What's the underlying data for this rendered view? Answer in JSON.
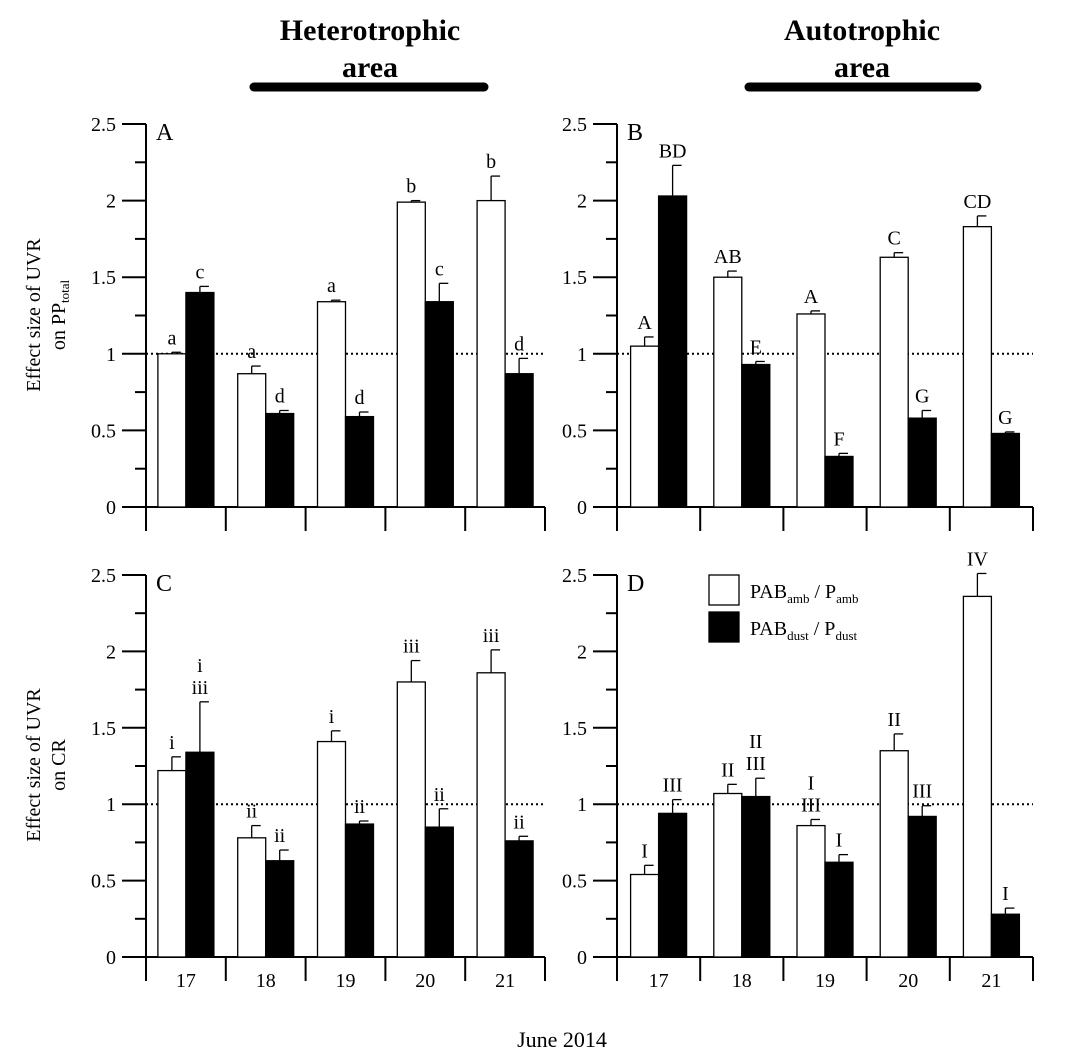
{
  "headers": {
    "left": [
      "Heterotrophic",
      "area"
    ],
    "right": [
      "Autotrophic",
      "area"
    ]
  },
  "y_axis_labels": {
    "top": {
      "line1": "Effect size of UVR",
      "line2_main": "on PP",
      "line2_sub": "total"
    },
    "bottom": {
      "line1": "Effect size of UVR",
      "line2_main": "on CR",
      "line2_sub": ""
    }
  },
  "x_axis_title": "June 2014",
  "legend": [
    {
      "main": "PAB",
      "sub1": "amb",
      "mid": " / P",
      "sub2": "amb",
      "fill": "#ffffff"
    },
    {
      "main": "PAB",
      "sub1": "dust",
      "mid": " / P",
      "sub2": "dust",
      "fill": "#000000"
    }
  ],
  "colors": {
    "ambient_bar": "#ffffff",
    "dust_bar": "#000000",
    "axis": "#000000"
  },
  "chart_data": [
    {
      "type": "bar",
      "panel": "A",
      "categories": [
        "17",
        "18",
        "19",
        "20",
        "21"
      ],
      "ylim": [
        0,
        2.5
      ],
      "yticks": [
        "0",
        "0.5",
        "1",
        "1.5",
        "2",
        "2.5"
      ],
      "reference_line": 1,
      "series": [
        {
          "name": "PABamb / Pamb",
          "values": [
            1.0,
            0.87,
            1.34,
            1.99,
            2.0
          ],
          "errors": [
            0.01,
            0.05,
            0.01,
            0.01,
            0.16
          ],
          "labels": [
            [
              "a"
            ],
            [
              "a"
            ],
            [
              "a"
            ],
            [
              "b"
            ],
            [
              "b"
            ]
          ]
        },
        {
          "name": "PABdust / Pdust",
          "values": [
            1.4,
            0.61,
            0.59,
            1.34,
            0.87
          ],
          "errors": [
            0.04,
            0.02,
            0.03,
            0.12,
            0.1
          ],
          "labels": [
            [
              "c"
            ],
            [
              "d"
            ],
            [
              "d"
            ],
            [
              "c"
            ],
            [
              "d"
            ]
          ]
        }
      ]
    },
    {
      "type": "bar",
      "panel": "B",
      "categories": [
        "17",
        "18",
        "19",
        "20",
        "21"
      ],
      "ylim": [
        0,
        2.5
      ],
      "yticks": [
        "0",
        "0.5",
        "1",
        "1.5",
        "2",
        "2.5"
      ],
      "reference_line": 1,
      "series": [
        {
          "name": "PABamb / Pamb",
          "values": [
            1.05,
            1.5,
            1.26,
            1.63,
            1.83
          ],
          "errors": [
            0.06,
            0.04,
            0.02,
            0.03,
            0.07
          ],
          "labels": [
            [
              "A"
            ],
            [
              "AB"
            ],
            [
              "A"
            ],
            [
              "C"
            ],
            [
              "CD"
            ]
          ]
        },
        {
          "name": "PABdust / Pdust",
          "values": [
            2.03,
            0.93,
            0.33,
            0.58,
            0.48
          ],
          "errors": [
            0.2,
            0.02,
            0.02,
            0.05,
            0.01
          ],
          "labels": [
            [
              "BD"
            ],
            [
              "E"
            ],
            [
              "F"
            ],
            [
              "G"
            ],
            [
              "G"
            ]
          ]
        }
      ]
    },
    {
      "type": "bar",
      "panel": "C",
      "categories": [
        "17",
        "18",
        "19",
        "20",
        "21"
      ],
      "ylim": [
        0,
        2.5
      ],
      "yticks": [
        "0",
        "0.5",
        "1",
        "1.5",
        "2",
        "2.5"
      ],
      "reference_line": 1,
      "series": [
        {
          "name": "PABamb / Pamb",
          "values": [
            1.22,
            0.78,
            1.41,
            1.8,
            1.86
          ],
          "errors": [
            0.09,
            0.08,
            0.07,
            0.14,
            0.15
          ],
          "labels": [
            [
              "i"
            ],
            [
              "ii"
            ],
            [
              "i"
            ],
            [
              "iii"
            ],
            [
              "iii"
            ]
          ]
        },
        {
          "name": "PABdust / Pdust",
          "values": [
            1.34,
            0.63,
            0.87,
            0.85,
            0.76
          ],
          "errors": [
            0.33,
            0.07,
            0.02,
            0.12,
            0.03
          ],
          "labels": [
            [
              "i",
              "iii"
            ],
            [
              "ii"
            ],
            [
              "ii"
            ],
            [
              "ii"
            ],
            [
              "ii"
            ]
          ]
        }
      ]
    },
    {
      "type": "bar",
      "panel": "D",
      "categories": [
        "17",
        "18",
        "19",
        "20",
        "21"
      ],
      "ylim": [
        0,
        2.5
      ],
      "yticks": [
        "0",
        "0.5",
        "1",
        "1.5",
        "2",
        "2.5"
      ],
      "reference_line": 1,
      "series": [
        {
          "name": "PABamb / Pamb",
          "values": [
            0.54,
            1.07,
            0.86,
            1.35,
            2.36
          ],
          "errors": [
            0.06,
            0.06,
            0.04,
            0.11,
            0.15
          ],
          "labels": [
            [
              "I"
            ],
            [
              "II"
            ],
            [
              "I",
              "III"
            ],
            [
              "II"
            ],
            [
              "IV"
            ]
          ]
        },
        {
          "name": "PABdust / Pdust",
          "values": [
            0.94,
            1.05,
            0.62,
            0.92,
            0.28
          ],
          "errors": [
            0.09,
            0.12,
            0.05,
            0.07,
            0.04
          ],
          "labels": [
            [
              "III"
            ],
            [
              "II",
              "III"
            ],
            [
              "I"
            ],
            [
              "III"
            ],
            [
              "I"
            ]
          ]
        }
      ]
    }
  ]
}
